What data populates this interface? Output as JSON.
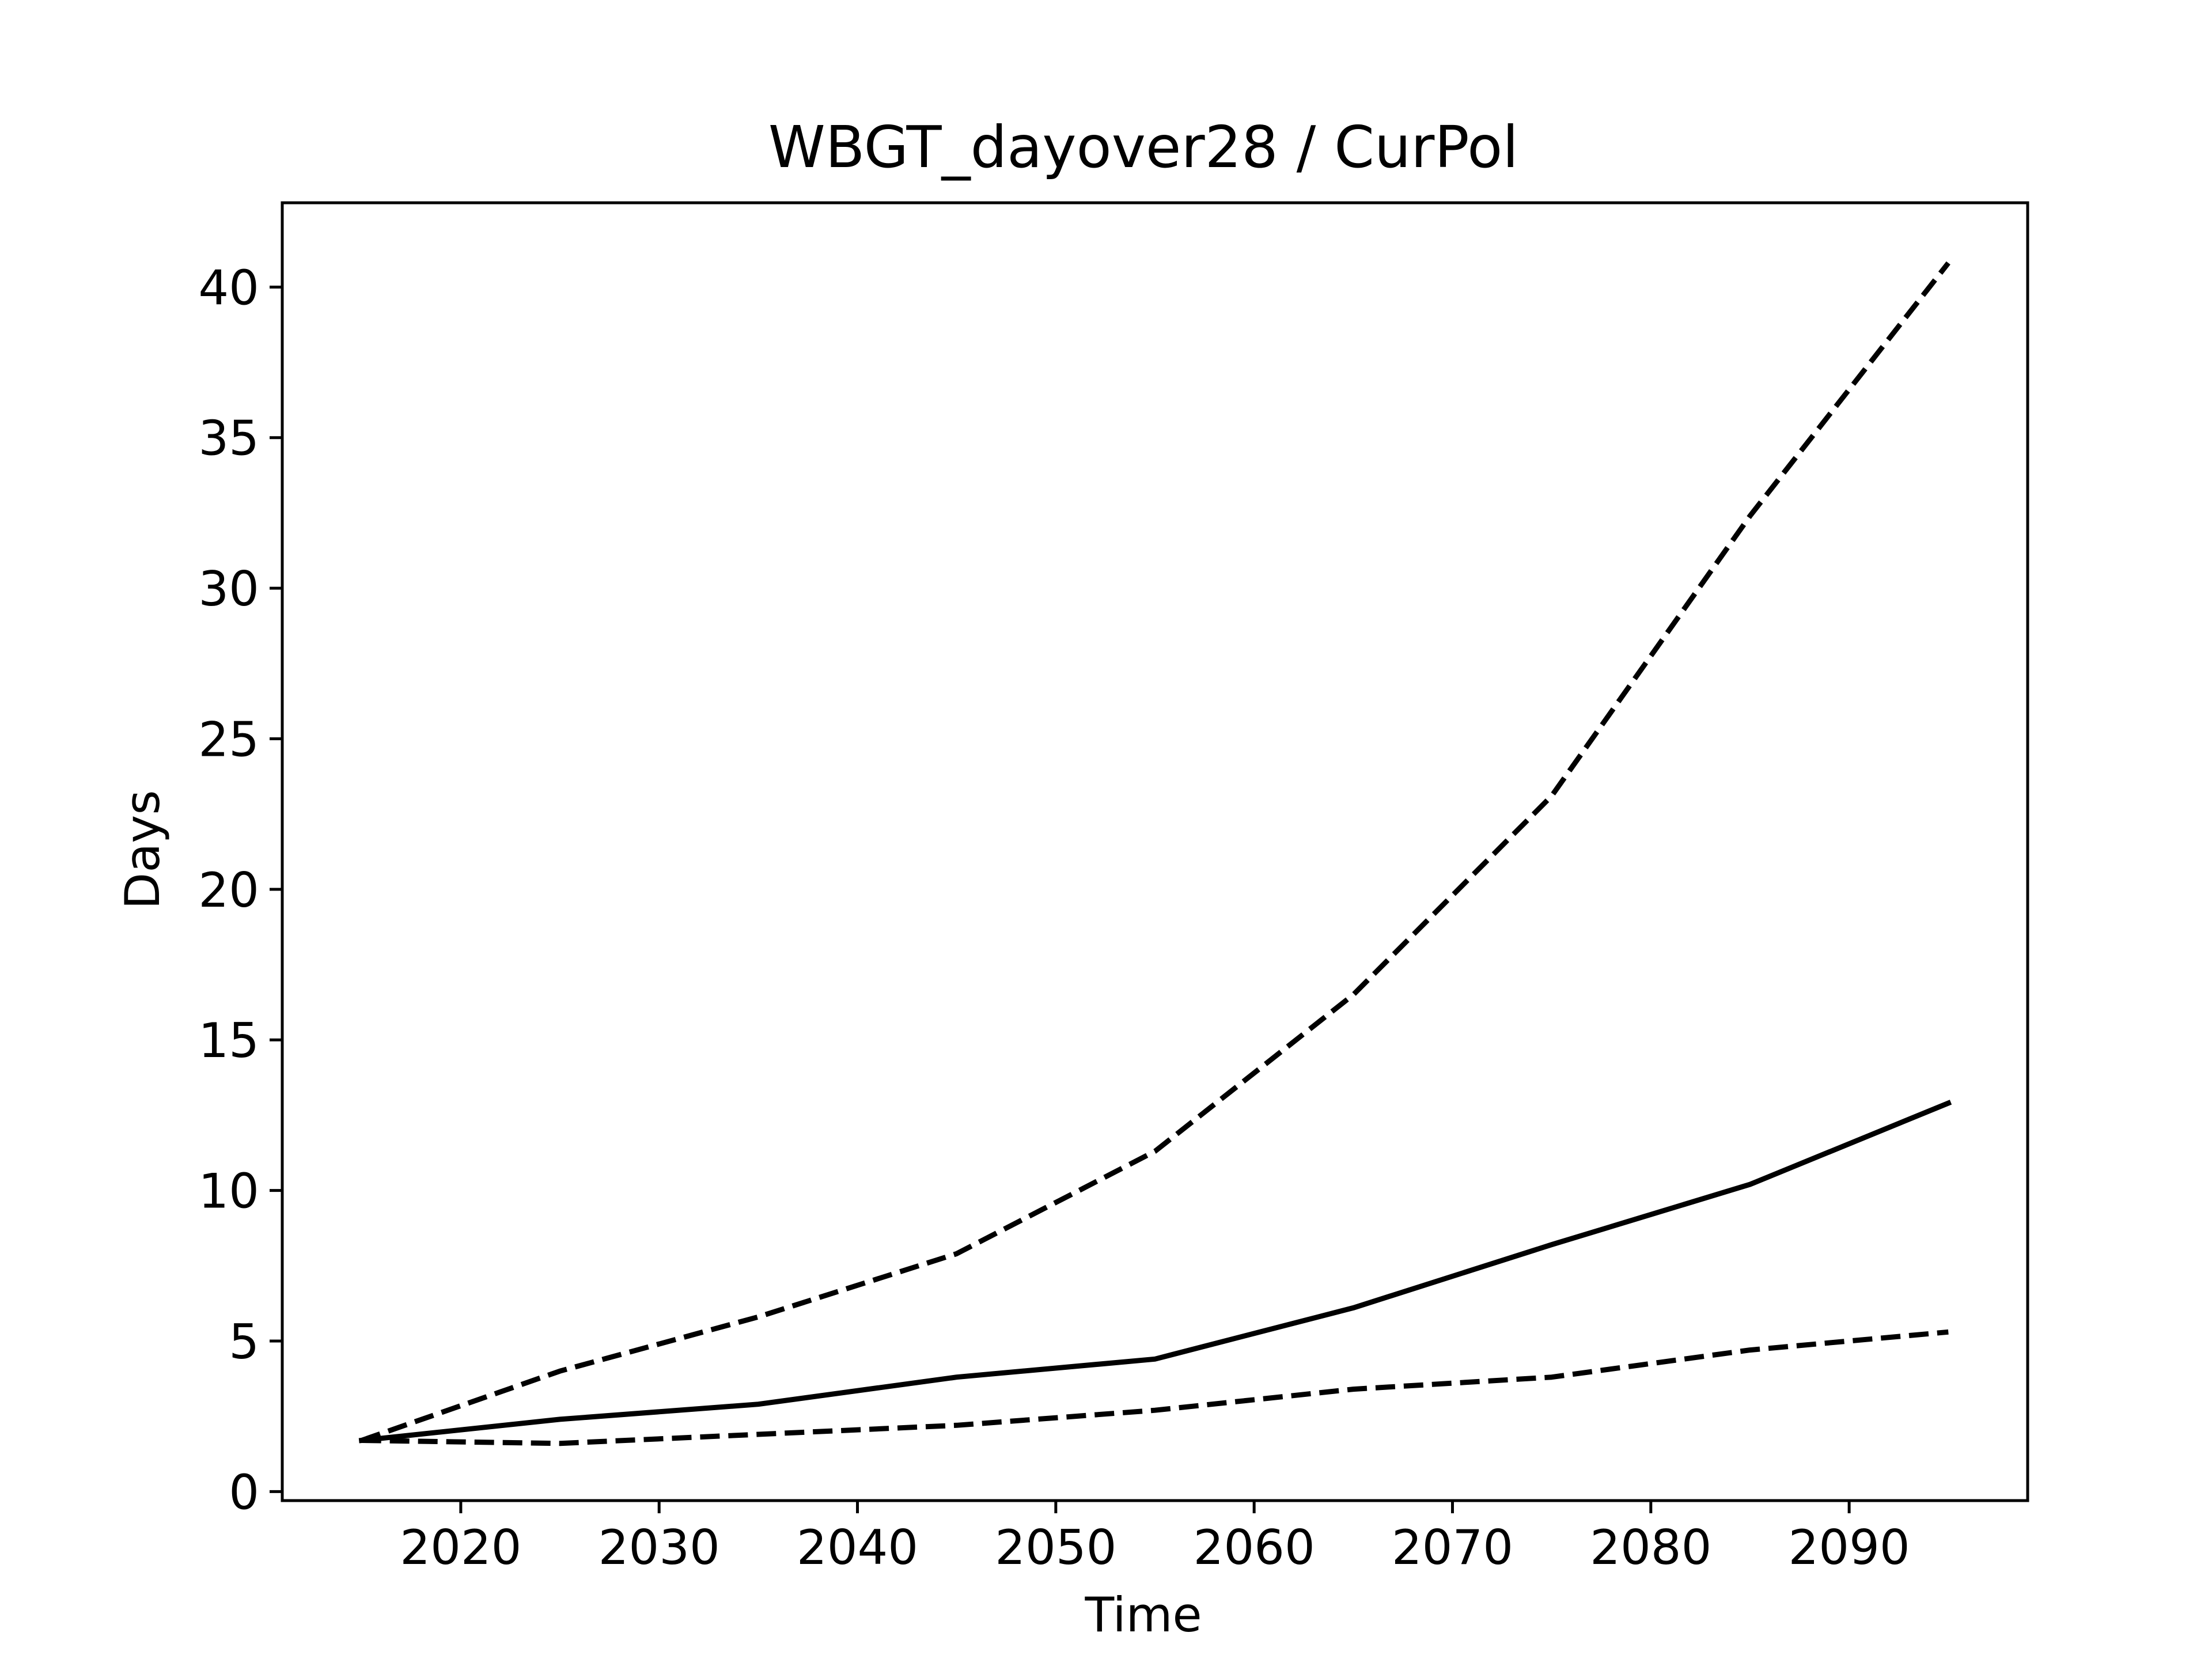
{
  "chart_data": {
    "type": "line",
    "title": "WBGT_dayover28 / CurPol",
    "xlabel": "Time",
    "ylabel": "Days",
    "xlim": [
      2011.0,
      2099.0
    ],
    "ylim": [
      -0.3,
      42.8
    ],
    "xticks": [
      2020,
      2030,
      2040,
      2050,
      2060,
      2070,
      2080,
      2090
    ],
    "yticks": [
      0,
      5,
      10,
      15,
      20,
      25,
      30,
      35,
      40
    ],
    "xtick_labels": [
      "2020",
      "2030",
      "2040",
      "2050",
      "2060",
      "2070",
      "2080",
      "2090"
    ],
    "ytick_labels": [
      "0",
      "5",
      "10",
      "15",
      "20",
      "25",
      "30",
      "35",
      "40"
    ],
    "grid": false,
    "line_color": "#000000",
    "x": [
      2015,
      2025,
      2035,
      2045,
      2055,
      2065,
      2075,
      2085,
      2095
    ],
    "series": [
      {
        "style": "solid",
        "values": [
          1.7,
          2.4,
          2.9,
          3.8,
          4.4,
          6.1,
          8.2,
          10.2,
          12.9
        ]
      },
      {
        "style": "dashed",
        "values": [
          1.7,
          4.0,
          5.8,
          7.9,
          11.3,
          16.5,
          23.1,
          32.4,
          40.8
        ]
      },
      {
        "style": "dashed",
        "values": [
          1.7,
          1.6,
          1.9,
          2.2,
          2.7,
          3.4,
          3.8,
          4.7,
          5.3
        ]
      }
    ]
  }
}
